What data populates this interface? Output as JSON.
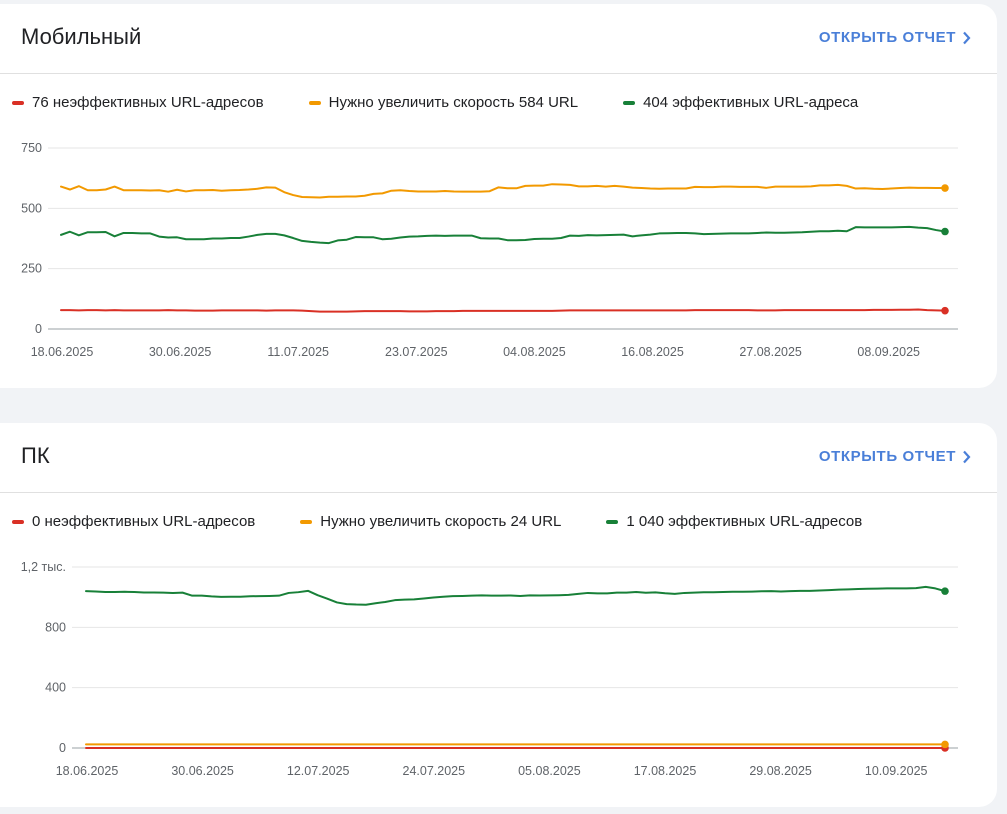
{
  "colors": {
    "poor": "#d93025",
    "needs_improvement": "#f29900",
    "good": "#188038",
    "link": "#4a7fd8"
  },
  "mobile": {
    "title": "Мобильный",
    "open_report": "ОТКРЫТЬ ОТЧЕТ",
    "legend": {
      "poor": "76 неэффективных URL-адресов",
      "needs_improvement": "Нужно увеличить скорость 584 URL",
      "good": "404 эффективных URL-адреса"
    },
    "y_ticks": [
      "750",
      "500",
      "250",
      "0"
    ],
    "x_ticks": [
      "18.06.2025",
      "30.06.2025",
      "11.07.2025",
      "23.07.2025",
      "04.08.2025",
      "16.08.2025",
      "27.08.2025",
      "08.09.2025"
    ]
  },
  "pc": {
    "title": "ПК",
    "open_report": "ОТКРЫТЬ ОТЧЕТ",
    "legend": {
      "poor": "0 неэффективных URL-адресов",
      "needs_improvement": "Нужно увеличить скорость 24 URL",
      "good": "1 040 эффективных URL-адресов"
    },
    "y_ticks": [
      "1,2 тыс.",
      "800",
      "400",
      "0"
    ],
    "x_ticks": [
      "18.06.2025",
      "30.06.2025",
      "12.07.2025",
      "24.07.2025",
      "05.08.2025",
      "17.08.2025",
      "29.08.2025",
      "10.09.2025"
    ]
  },
  "chart_data": [
    {
      "type": "line",
      "title": "Мобильный",
      "ylim": [
        0,
        750
      ],
      "grid": true,
      "legend_position": "top-left",
      "x_range": [
        "18.06.2025",
        "14.09.2025"
      ],
      "series": [
        {
          "name": "76 неэффективных URL-адресов",
          "color": "#d93025",
          "values": [
            78,
            78,
            77,
            78,
            78,
            77,
            78,
            77,
            77,
            77,
            77,
            77,
            78,
            77,
            77,
            76,
            76,
            76,
            77,
            77,
            77,
            77,
            77,
            76,
            77,
            77,
            77,
            76,
            74,
            72,
            72,
            72,
            72,
            73,
            74,
            74,
            74,
            74,
            74,
            73,
            73,
            73,
            74,
            74,
            74,
            75,
            75,
            75,
            75,
            75,
            75,
            75,
            75,
            75,
            75,
            75,
            76,
            77,
            77,
            77,
            77,
            77,
            77,
            77,
            77,
            77,
            77,
            77,
            77,
            77,
            77,
            78,
            78,
            78,
            78,
            78,
            78,
            78,
            77,
            77,
            77,
            78,
            78,
            78,
            78,
            78,
            78,
            78,
            78,
            78,
            78,
            79,
            79,
            79,
            80,
            80,
            81,
            78,
            77,
            76
          ]
        },
        {
          "name": "Нужно увеличить скорость 584 URL",
          "color": "#f29900",
          "values": [
            590,
            578,
            592,
            575,
            575,
            578,
            590,
            575,
            575,
            575,
            574,
            575,
            569,
            577,
            570,
            575,
            575,
            576,
            573,
            575,
            576,
            578,
            581,
            587,
            586,
            567,
            555,
            547,
            546,
            545,
            548,
            548,
            549,
            549,
            552,
            560,
            562,
            573,
            575,
            572,
            570,
            570,
            570,
            572,
            570,
            569,
            569,
            569,
            571,
            587,
            583,
            583,
            593,
            594,
            594,
            600,
            599,
            597,
            591,
            591,
            593,
            590,
            593,
            590,
            586,
            584,
            582,
            581,
            582,
            582,
            582,
            589,
            588,
            588,
            590,
            590,
            589,
            589,
            589,
            585,
            590,
            590,
            590,
            590,
            591,
            595,
            595,
            597,
            593,
            582,
            583,
            581,
            580,
            582,
            584,
            586,
            585,
            585,
            584,
            584
          ]
        },
        {
          "name": "404 эффективных URL-адреса",
          "color": "#188038",
          "values": [
            390,
            403,
            388,
            401,
            401,
            402,
            384,
            398,
            398,
            396,
            396,
            383,
            379,
            380,
            372,
            372,
            372,
            375,
            375,
            377,
            377,
            383,
            390,
            394,
            394,
            388,
            377,
            365,
            361,
            358,
            356,
            367,
            370,
            381,
            380,
            380,
            372,
            374,
            379,
            383,
            384,
            386,
            387,
            386,
            387,
            387,
            387,
            376,
            375,
            375,
            368,
            368,
            369,
            373,
            374,
            374,
            377,
            387,
            386,
            389,
            388,
            389,
            390,
            391,
            384,
            388,
            391,
            396,
            397,
            398,
            398,
            396,
            393,
            394,
            395,
            396,
            396,
            396,
            398,
            400,
            399,
            399,
            400,
            401,
            403,
            405,
            405,
            407,
            405,
            422,
            421,
            421,
            421,
            421,
            422,
            423,
            420,
            418,
            410,
            404
          ]
        }
      ]
    },
    {
      "type": "line",
      "title": "ПК",
      "ylim": [
        0,
        1200
      ],
      "grid": true,
      "legend_position": "top-left",
      "x_range": [
        "18.06.2025",
        "15.09.2025"
      ],
      "series": [
        {
          "name": "0 неэффективных URL-адресов",
          "color": "#d93025",
          "values": [
            0,
            0,
            0,
            0,
            0,
            0,
            0,
            0,
            0,
            0,
            0,
            0,
            0,
            0,
            0,
            0,
            0,
            0,
            0,
            0,
            0,
            0,
            0,
            0,
            0,
            0,
            0,
            0,
            0,
            0,
            0,
            0,
            0,
            0,
            0,
            0,
            0,
            0,
            0,
            0,
            0,
            0,
            0,
            0,
            0,
            0,
            0,
            0,
            0,
            0,
            0,
            0,
            0,
            0,
            0,
            0,
            0,
            0,
            0,
            0,
            0,
            0,
            0,
            0,
            0,
            0,
            0,
            0,
            0,
            0,
            0,
            0,
            0,
            0,
            0,
            0,
            0,
            0,
            0,
            0,
            0,
            0,
            0,
            0,
            0,
            0,
            0,
            0,
            0,
            0
          ]
        },
        {
          "name": "Нужно увеличить скорость 24 URL",
          "color": "#f29900",
          "values": [
            24,
            24,
            24,
            24,
            24,
            24,
            24,
            24,
            24,
            24,
            24,
            24,
            24,
            24,
            24,
            24,
            24,
            24,
            24,
            24,
            24,
            24,
            24,
            24,
            24,
            24,
            24,
            24,
            24,
            24,
            24,
            24,
            24,
            24,
            24,
            24,
            24,
            24,
            24,
            24,
            24,
            24,
            24,
            24,
            24,
            24,
            24,
            24,
            24,
            24,
            24,
            24,
            24,
            24,
            24,
            24,
            24,
            24,
            24,
            24,
            24,
            24,
            24,
            24,
            24,
            24,
            24,
            24,
            24,
            24,
            24,
            24,
            24,
            24,
            24,
            24,
            24,
            24,
            24,
            24,
            24,
            24,
            24,
            24,
            24,
            24,
            24,
            24,
            24,
            24
          ]
        },
        {
          "name": "1 040 эффективных URL-адресов",
          "color": "#188038",
          "values": [
            1040,
            1038,
            1034,
            1034,
            1036,
            1034,
            1031,
            1031,
            1030,
            1028,
            1030,
            1010,
            1010,
            1005,
            1002,
            1003,
            1003,
            1006,
            1007,
            1008,
            1010,
            1028,
            1033,
            1042,
            1013,
            990,
            965,
            954,
            951,
            950,
            960,
            968,
            980,
            984,
            985,
            991,
            998,
            1003,
            1007,
            1008,
            1010,
            1012,
            1010,
            1010,
            1011,
            1008,
            1012,
            1011,
            1012,
            1013,
            1015,
            1022,
            1028,
            1025,
            1025,
            1030,
            1030,
            1034,
            1029,
            1032,
            1026,
            1022,
            1028,
            1030,
            1033,
            1033,
            1034,
            1036,
            1036,
            1037,
            1039,
            1040,
            1038,
            1040,
            1042,
            1042,
            1044,
            1047,
            1050,
            1052,
            1054,
            1056,
            1057,
            1058,
            1058,
            1058,
            1060,
            1068,
            1058,
            1040
          ]
        }
      ]
    }
  ]
}
